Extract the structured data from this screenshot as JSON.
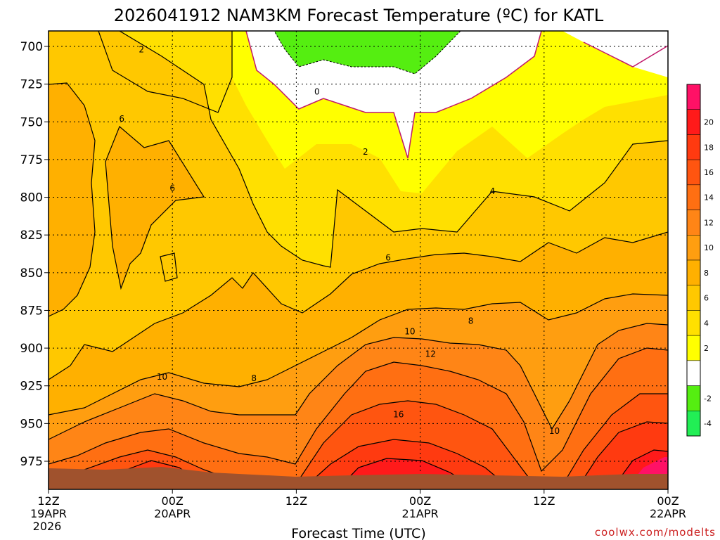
{
  "chart_data": {
    "type": "contour",
    "title": "2026041912 NAM3KM Forecast Temperature (ºC) for KATL",
    "xlabel": "Forecast Time (UTC)",
    "ylabel": "",
    "credit": "coolwx.com/modelts",
    "y_ticks": [
      {
        "label": "700",
        "p": 700
      },
      {
        "label": "725",
        "p": 725
      },
      {
        "label": "750",
        "p": 750
      },
      {
        "label": "775",
        "p": 775
      },
      {
        "label": "800",
        "p": 800
      },
      {
        "label": "825",
        "p": 825
      },
      {
        "label": "850",
        "p": 850
      },
      {
        "label": "875",
        "p": 875
      },
      {
        "label": "900",
        "p": 900
      },
      {
        "label": "925",
        "p": 925
      },
      {
        "label": "950",
        "p": 950
      },
      {
        "label": "975",
        "p": 975
      }
    ],
    "x_ticks": [
      {
        "hour": 0,
        "l1": "12Z",
        "l2": "19APR",
        "l3": "2026"
      },
      {
        "hour": 12,
        "l1": "00Z",
        "l2": "20APR",
        "l3": ""
      },
      {
        "hour": 24,
        "l1": "12Z",
        "l2": "",
        "l3": ""
      },
      {
        "hour": 36,
        "l1": "00Z",
        "l2": "21APR",
        "l3": ""
      },
      {
        "hour": 48,
        "l1": "12Z",
        "l2": "",
        "l3": ""
      },
      {
        "hour": 60,
        "l1": "00Z",
        "l2": "22APR",
        "l3": ""
      }
    ],
    "xlim_hours": [
      0,
      60
    ],
    "contour_labels": [
      {
        "text": "2",
        "hour": 9.0,
        "p": 702
      },
      {
        "text": "6",
        "hour": 7.1,
        "p": 748
      },
      {
        "text": "6",
        "hour": 12.0,
        "p": 794
      },
      {
        "text": "0",
        "hour": 26.0,
        "p": 730
      },
      {
        "text": "2",
        "hour": 30.7,
        "p": 770
      },
      {
        "text": "4",
        "hour": 43.0,
        "p": 796
      },
      {
        "text": "6",
        "hour": 32.9,
        "p": 840
      },
      {
        "text": "8",
        "hour": 40.9,
        "p": 882
      },
      {
        "text": "10",
        "hour": 35.0,
        "p": 889
      },
      {
        "text": "12",
        "hour": 37.0,
        "p": 904
      },
      {
        "text": "10",
        "hour": 11.0,
        "p": 919
      },
      {
        "text": "8",
        "hour": 19.9,
        "p": 920
      },
      {
        "text": "16",
        "hour": 33.9,
        "p": 944
      },
      {
        "text": "10",
        "hour": 49.0,
        "p": 955
      }
    ],
    "colorbar": [
      {
        "label": "",
        "color": "#ff1166"
      },
      {
        "label": "20",
        "color": "#ff1a1a"
      },
      {
        "label": "18",
        "color": "#ff3a10"
      },
      {
        "label": "16",
        "color": "#ff5510"
      },
      {
        "label": "14",
        "color": "#ff6f12"
      },
      {
        "label": "12",
        "color": "#ff8516"
      },
      {
        "label": "10",
        "color": "#ff9e10"
      },
      {
        "label": "8",
        "color": "#ffb000"
      },
      {
        "label": "6",
        "color": "#ffc800"
      },
      {
        "label": "4",
        "color": "#ffe000"
      },
      {
        "label": "2",
        "color": "#ffff00"
      },
      {
        "label": "",
        "color": "#ffffff"
      },
      {
        "label": "-2",
        "color": "#55ee11"
      },
      {
        "label": "-4",
        "color": "#22ee55"
      }
    ]
  }
}
